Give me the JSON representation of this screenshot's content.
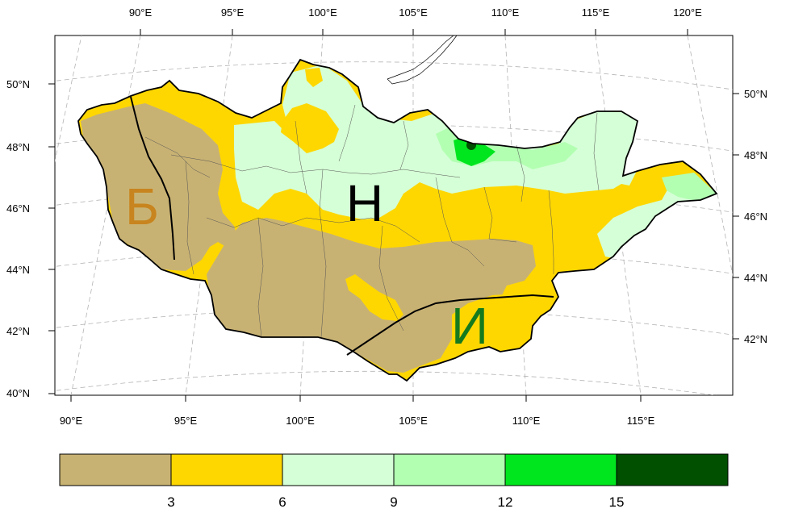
{
  "map": {
    "top_lon_labels": [
      "90°E",
      "95°E",
      "100°E",
      "105°E",
      "110°E",
      "115°E",
      "120°E"
    ],
    "bottom_lon_labels": [
      "90°E",
      "95°E",
      "100°E",
      "105°E",
      "110°E",
      "115°E"
    ],
    "left_lat_labels": [
      "50°N",
      "48°N",
      "46°N",
      "44°N",
      "42°N",
      "40°N"
    ],
    "right_lat_labels": [
      "50°N",
      "48°N",
      "46°N",
      "44°N",
      "42°N"
    ],
    "regions": [
      {
        "label": "Б",
        "color": "#c8841e"
      },
      {
        "label": "Н",
        "color": "#000000"
      },
      {
        "label": "И",
        "color": "#157a1e"
      }
    ]
  },
  "legend": {
    "colors": [
      "#c8b273",
      "#ffd700",
      "#d5ffd6",
      "#b2ffb2",
      "#00e61e",
      "#005000"
    ],
    "ticks": [
      "3",
      "6",
      "9",
      "12",
      "15"
    ]
  }
}
